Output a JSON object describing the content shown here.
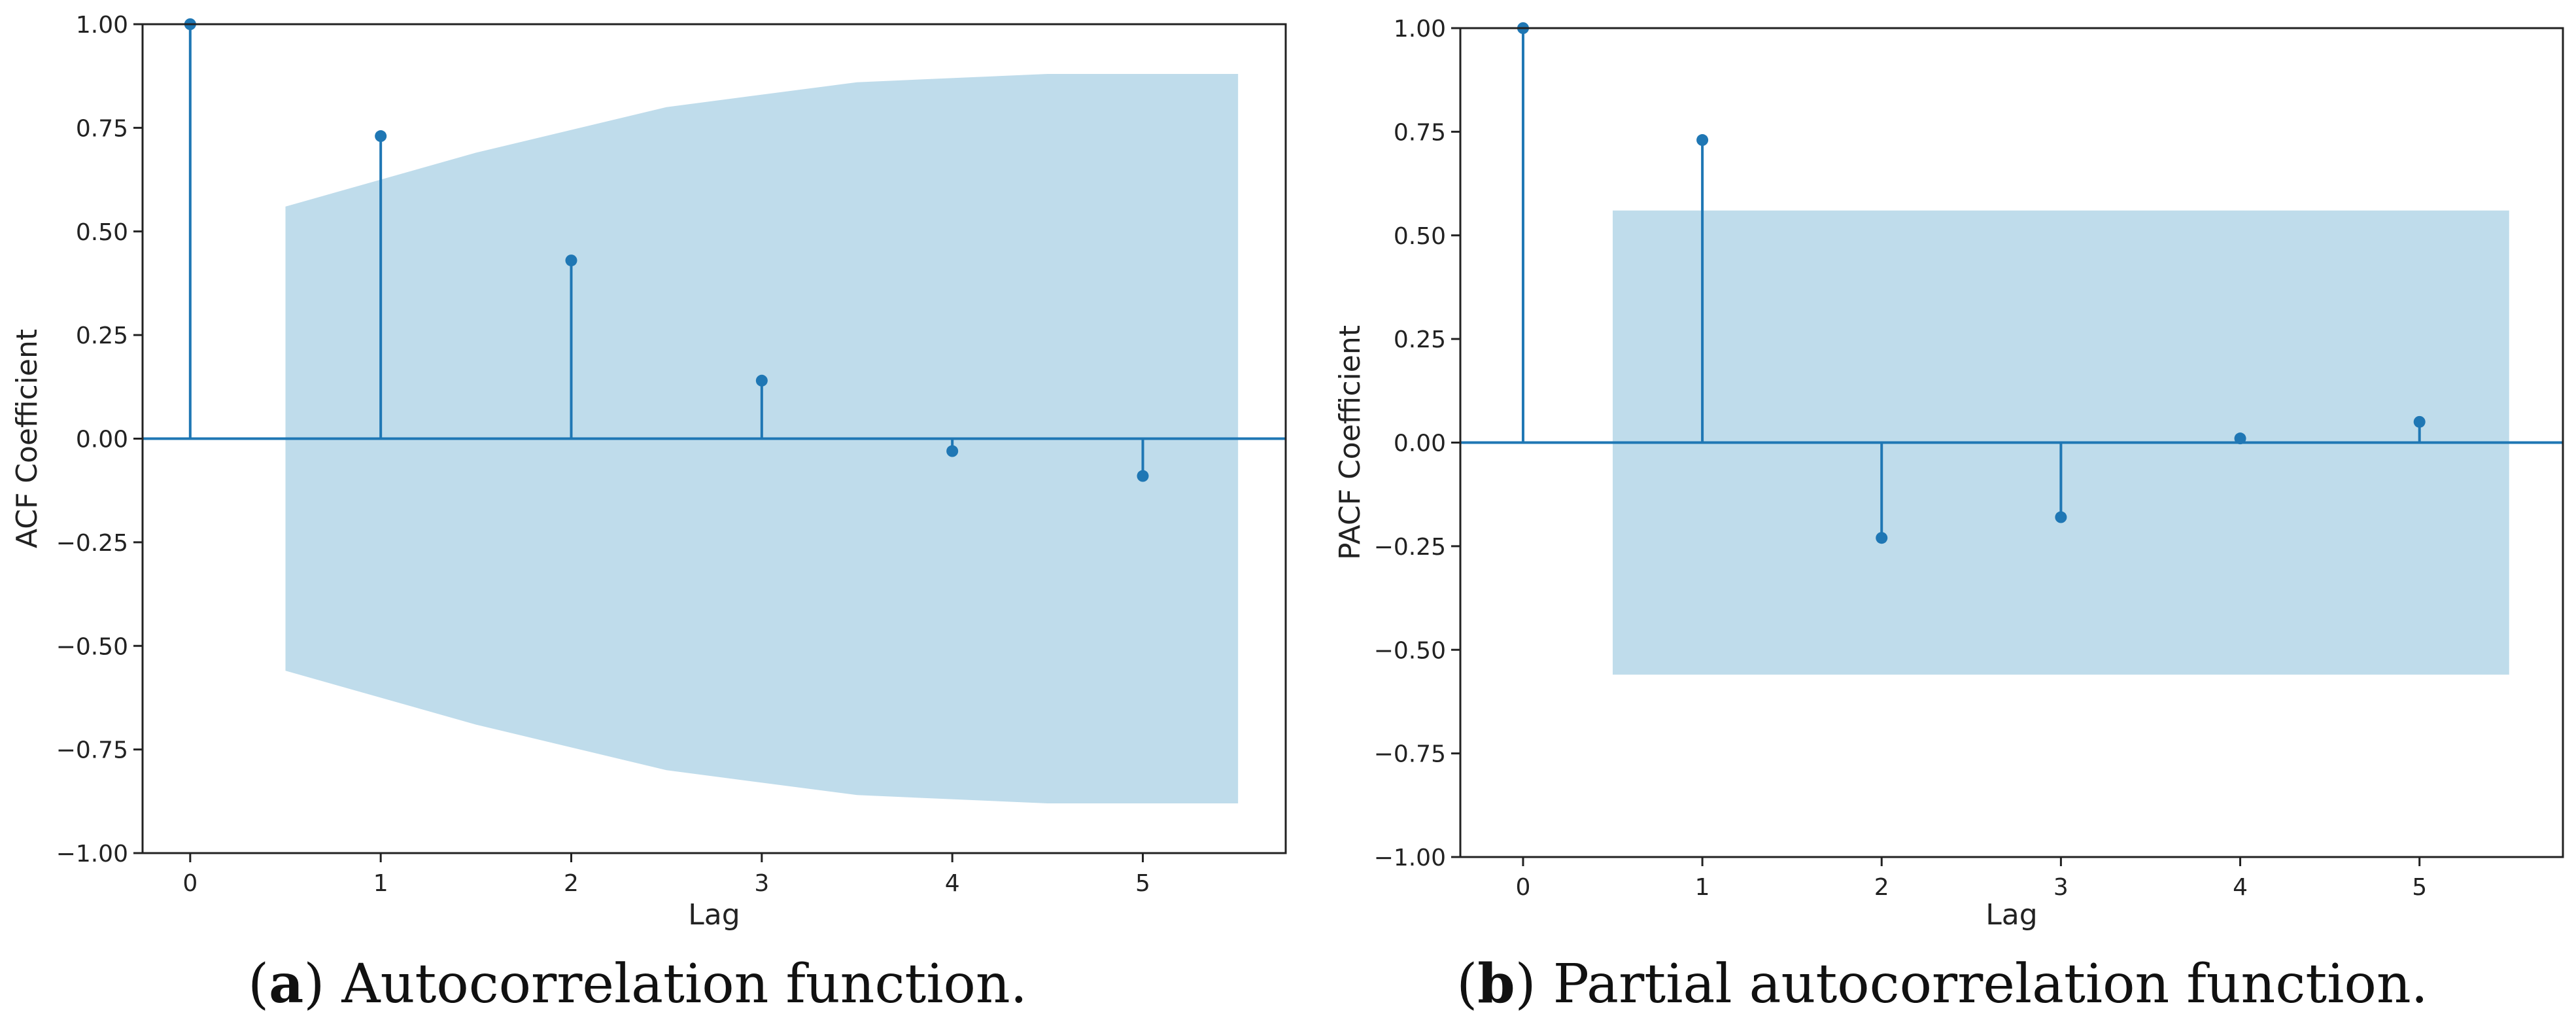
{
  "chart_data": [
    {
      "type": "stem",
      "id": "acf",
      "ylabel": "ACF Coefficient",
      "xlabel": "Lag",
      "ylim": [
        -1.0,
        1.0
      ],
      "xlim": [
        -0.25,
        5.75
      ],
      "yticks": [
        1.0,
        0.75,
        0.5,
        0.25,
        0.0,
        -0.25,
        -0.5,
        -0.75,
        -1.0
      ],
      "ytick_labels": [
        "1.00",
        "0.75",
        "0.50",
        "0.25",
        "0.00",
        "−0.25",
        "−0.50",
        "−0.75",
        "−1.00"
      ],
      "xticks": [
        0,
        1,
        2,
        3,
        4,
        5
      ],
      "xtick_labels": [
        "0",
        "1",
        "2",
        "3",
        "4",
        "5"
      ],
      "lags": [
        0,
        1,
        2,
        3,
        4,
        5
      ],
      "values": [
        1.0,
        0.73,
        0.43,
        0.14,
        -0.03,
        -0.09
      ],
      "confidence_band": {
        "x": [
          0.5,
          1.5,
          2.5,
          3.5,
          4.5,
          5.5
        ],
        "upper": [
          0.56,
          0.69,
          0.8,
          0.86,
          0.88,
          0.88
        ],
        "lower": [
          -0.56,
          -0.69,
          -0.8,
          -0.86,
          -0.88,
          -0.88
        ]
      },
      "caption_label": "a",
      "caption_text": " Autocorrelation function."
    },
    {
      "type": "stem",
      "id": "pacf",
      "ylabel": "PACF Coefficient",
      "xlabel": "Lag",
      "ylim": [
        -1.0,
        1.0
      ],
      "xlim": [
        -0.35,
        5.8
      ],
      "yticks": [
        1.0,
        0.75,
        0.5,
        0.25,
        0.0,
        -0.25,
        -0.5,
        -0.75,
        -1.0
      ],
      "ytick_labels": [
        "1.00",
        "0.75",
        "0.50",
        "0.25",
        "0.00",
        "−0.25",
        "−0.50",
        "−0.75",
        "−1.00"
      ],
      "xticks": [
        0,
        1,
        2,
        3,
        4,
        5
      ],
      "xtick_labels": [
        "0",
        "1",
        "2",
        "3",
        "4",
        "5"
      ],
      "lags": [
        0,
        1,
        2,
        3,
        4,
        5
      ],
      "values": [
        1.0,
        0.73,
        -0.23,
        -0.18,
        0.01,
        0.05
      ],
      "confidence_band": {
        "x": [
          0.5,
          5.5
        ],
        "upper": [
          0.56,
          0.56
        ],
        "lower": [
          -0.56,
          -0.56
        ]
      },
      "caption_label": "b",
      "caption_text": " Partial autocorrelation function."
    }
  ],
  "colors": {
    "stem": "#1f77b4",
    "band": "#a6cee3",
    "axis": "#222222",
    "baseline": "#1f77b4"
  }
}
